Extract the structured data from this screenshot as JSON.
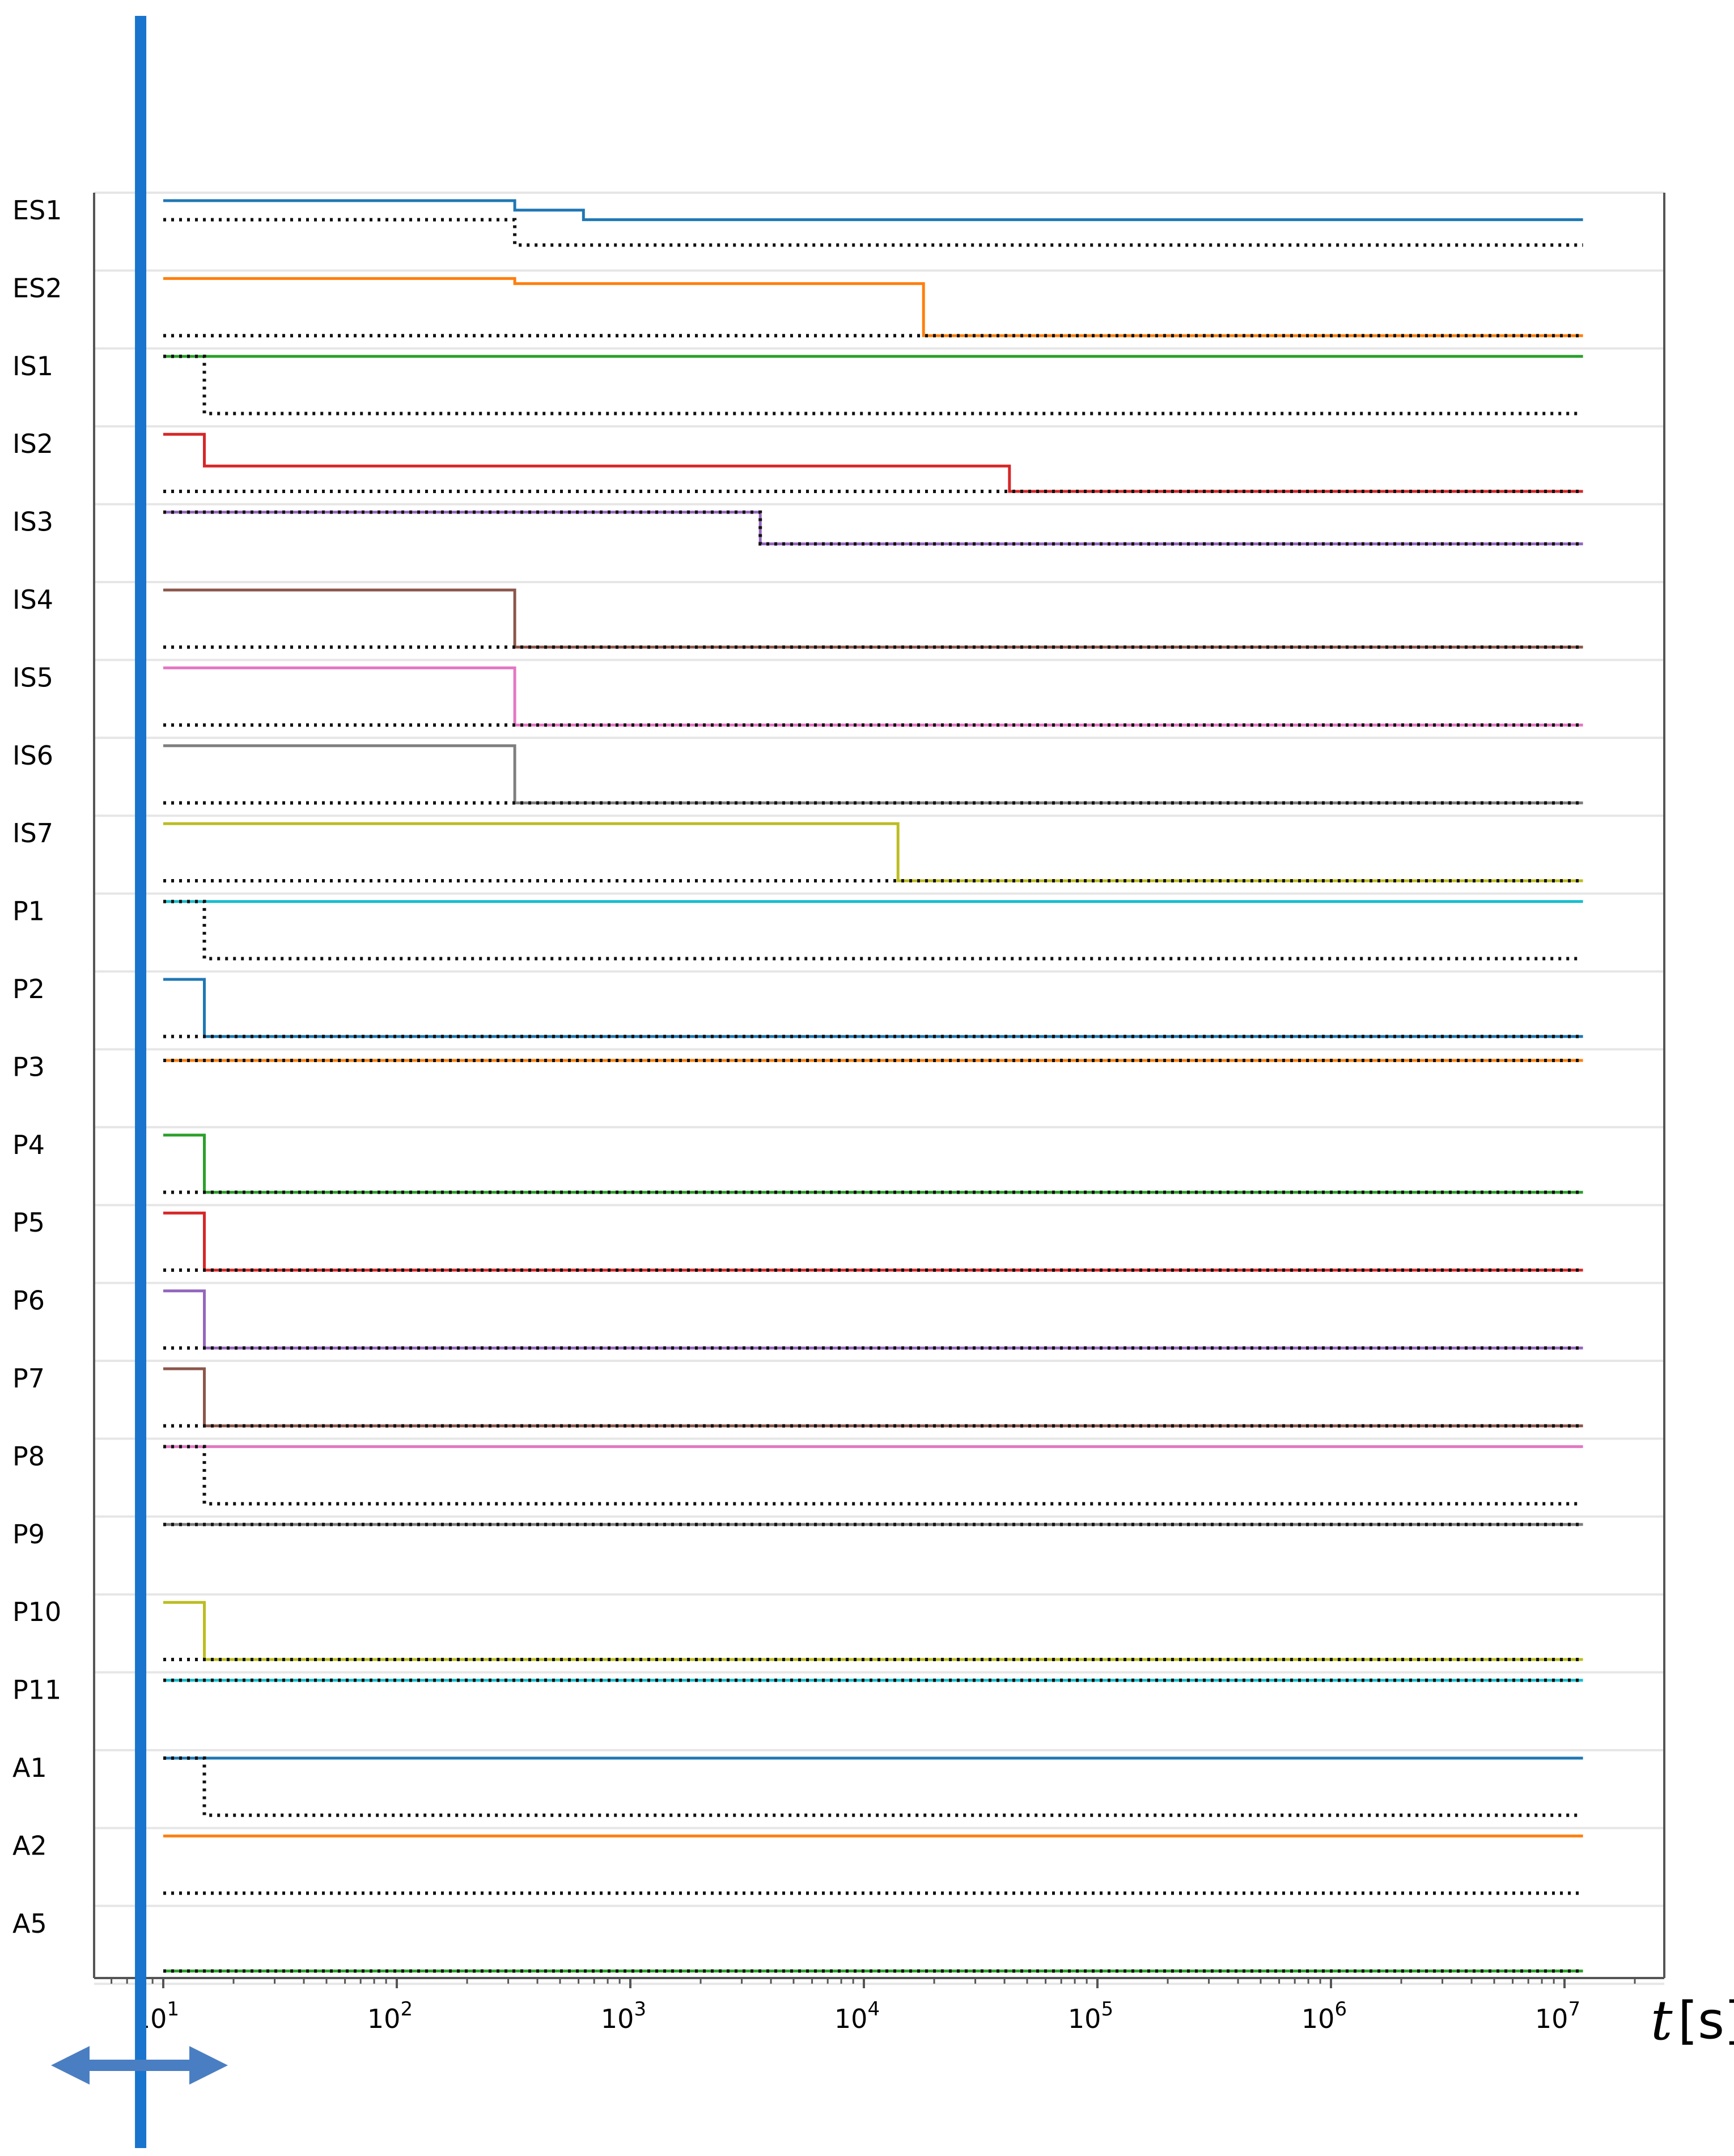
{
  "chart_data": {
    "type": "line",
    "subtype": "step",
    "x_scale": "log",
    "xlim": [
      10,
      12000000
    ],
    "x_ticks": [
      {
        "value": 10,
        "base": "10",
        "exp": "1"
      },
      {
        "value": 100,
        "base": "10",
        "exp": "2"
      },
      {
        "value": 1000,
        "base": "10",
        "exp": "3"
      },
      {
        "value": 10000,
        "base": "10",
        "exp": "4"
      },
      {
        "value": 100000,
        "base": "10",
        "exp": "5"
      },
      {
        "value": 1000000,
        "base": "10",
        "exp": "6"
      },
      {
        "value": 10000000,
        "base": "10",
        "exp": "7"
      }
    ],
    "x_unit": {
      "symbol": "t",
      "unit": "[s]"
    },
    "cursor": {
      "x": 8
    },
    "grid": "horizontal row separators",
    "legend": "none",
    "rows": [
      {
        "label": "ES1",
        "color": "#1f77b4",
        "solid": [
          [
            10,
            1.0
          ],
          [
            320,
            0.85
          ],
          [
            630,
            0.7
          ],
          [
            12000000,
            0.7
          ]
        ],
        "dotted": [
          [
            10,
            0.7
          ],
          [
            320,
            0.3
          ],
          [
            12000000,
            0.3
          ]
        ]
      },
      {
        "label": "ES2",
        "color": "#ff7f0e",
        "solid": [
          [
            10,
            1.0
          ],
          [
            320,
            0.92
          ],
          [
            18000,
            0.1
          ],
          [
            12000000,
            0.1
          ]
        ],
        "dotted": [
          [
            10,
            0.1
          ],
          [
            12000000,
            0.1
          ]
        ]
      },
      {
        "label": "IS1",
        "color": "#2ca02c",
        "solid": [
          [
            10,
            1.0
          ],
          [
            12000000,
            1.0
          ]
        ],
        "dotted": [
          [
            10,
            1.0
          ],
          [
            15,
            0.1
          ],
          [
            11500000,
            0.1
          ]
        ]
      },
      {
        "label": "IS2",
        "color": "#d62728",
        "solid": [
          [
            10,
            1.0
          ],
          [
            15,
            0.5
          ],
          [
            42000,
            0.1
          ],
          [
            12000000,
            0.1
          ]
        ],
        "dotted": [
          [
            10,
            0.1
          ],
          [
            12000000,
            0.1
          ]
        ]
      },
      {
        "label": "IS3",
        "color": "#9467bd",
        "solid": [
          [
            10,
            1.0
          ],
          [
            3600,
            0.5
          ],
          [
            12000000,
            0.5
          ]
        ],
        "dotted": [
          [
            10,
            1.0
          ],
          [
            3600,
            0.5
          ],
          [
            12000000,
            0.5
          ]
        ]
      },
      {
        "label": "IS4",
        "color": "#8c564b",
        "solid": [
          [
            10,
            1.0
          ],
          [
            320,
            0.1
          ],
          [
            12000000,
            0.1
          ]
        ],
        "dotted": [
          [
            10,
            0.1
          ],
          [
            12000000,
            0.1
          ]
        ]
      },
      {
        "label": "IS5",
        "color": "#e377c2",
        "solid": [
          [
            10,
            1.0
          ],
          [
            320,
            0.1
          ],
          [
            12000000,
            0.1
          ]
        ],
        "dotted": [
          [
            10,
            0.1
          ],
          [
            12000000,
            0.1
          ]
        ]
      },
      {
        "label": "IS6",
        "color": "#7f7f7f",
        "solid": [
          [
            10,
            1.0
          ],
          [
            320,
            0.1
          ],
          [
            12000000,
            0.1
          ]
        ],
        "dotted": [
          [
            10,
            0.1
          ],
          [
            12000000,
            0.1
          ]
        ]
      },
      {
        "label": "IS7",
        "color": "#bcbd22",
        "solid": [
          [
            10,
            1.0
          ],
          [
            14000,
            0.1
          ],
          [
            12000000,
            0.1
          ]
        ],
        "dotted": [
          [
            10,
            0.1
          ],
          [
            12000000,
            0.1
          ]
        ]
      },
      {
        "label": "P1",
        "color": "#17becf",
        "solid": [
          [
            10,
            1.0
          ],
          [
            12000000,
            1.0
          ]
        ],
        "dotted": [
          [
            10,
            1.0
          ],
          [
            15,
            0.1
          ],
          [
            11500000,
            0.1
          ]
        ]
      },
      {
        "label": "P2",
        "color": "#1f77b4",
        "solid": [
          [
            10,
            1.0
          ],
          [
            15,
            0.1
          ],
          [
            12000000,
            0.1
          ]
        ],
        "dotted": [
          [
            10,
            0.1
          ],
          [
            12000000,
            0.1
          ]
        ]
      },
      {
        "label": "P3",
        "color": "#ff7f0e",
        "solid": [
          [
            10,
            0.95
          ],
          [
            12000000,
            0.95
          ]
        ],
        "dotted": [
          [
            10,
            0.95
          ],
          [
            12000000,
            0.95
          ]
        ]
      },
      {
        "label": "P4",
        "color": "#2ca02c",
        "solid": [
          [
            10,
            1.0
          ],
          [
            15,
            0.1
          ],
          [
            12000000,
            0.1
          ]
        ],
        "dotted": [
          [
            10,
            0.1
          ],
          [
            12000000,
            0.1
          ]
        ]
      },
      {
        "label": "P5",
        "color": "#d62728",
        "solid": [
          [
            10,
            1.0
          ],
          [
            15,
            0.1
          ],
          [
            12000000,
            0.1
          ]
        ],
        "dotted": [
          [
            10,
            0.1
          ],
          [
            12000000,
            0.1
          ]
        ]
      },
      {
        "label": "P6",
        "color": "#9467bd",
        "solid": [
          [
            10,
            1.0
          ],
          [
            15,
            0.1
          ],
          [
            12000000,
            0.1
          ]
        ],
        "dotted": [
          [
            10,
            0.1
          ],
          [
            12000000,
            0.1
          ]
        ]
      },
      {
        "label": "P7",
        "color": "#8c564b",
        "solid": [
          [
            10,
            1.0
          ],
          [
            15,
            0.1
          ],
          [
            12000000,
            0.1
          ]
        ],
        "dotted": [
          [
            10,
            0.1
          ],
          [
            12000000,
            0.1
          ]
        ]
      },
      {
        "label": "P8",
        "color": "#e377c2",
        "solid": [
          [
            10,
            1.0
          ],
          [
            12000000,
            1.0
          ]
        ],
        "dotted": [
          [
            10,
            1.0
          ],
          [
            15,
            0.1
          ],
          [
            11500000,
            0.1
          ]
        ]
      },
      {
        "label": "P9",
        "color": "#7f7f7f",
        "solid": [
          [
            10,
            1.0
          ],
          [
            12000000,
            1.0
          ]
        ],
        "dotted": [
          [
            10,
            1.0
          ],
          [
            12000000,
            1.0
          ]
        ]
      },
      {
        "label": "P10",
        "color": "#bcbd22",
        "solid": [
          [
            10,
            1.0
          ],
          [
            15,
            0.1
          ],
          [
            12000000,
            0.1
          ]
        ],
        "dotted": [
          [
            10,
            0.1
          ],
          [
            12000000,
            0.1
          ]
        ]
      },
      {
        "label": "P11",
        "color": "#17becf",
        "solid": [
          [
            10,
            1.0
          ],
          [
            12000000,
            1.0
          ]
        ],
        "dotted": [
          [
            10,
            1.0
          ],
          [
            12000000,
            1.0
          ]
        ]
      },
      {
        "label": "A1",
        "color": "#1f77b4",
        "solid": [
          [
            10,
            1.0
          ],
          [
            12000000,
            1.0
          ]
        ],
        "dotted": [
          [
            10,
            1.0
          ],
          [
            15,
            0.1
          ],
          [
            11500000,
            0.1
          ]
        ]
      },
      {
        "label": "A2",
        "color": "#ff7f0e",
        "solid": [
          [
            10,
            1.0
          ],
          [
            12000000,
            1.0
          ]
        ],
        "dotted": [
          [
            10,
            0.1
          ],
          [
            12000000,
            0.1
          ]
        ]
      },
      {
        "label": "A5",
        "color": "#2ca02c",
        "solid": [
          [
            10,
            0.1
          ],
          [
            12000000,
            0.1
          ]
        ],
        "dotted": [
          [
            10,
            0.1
          ],
          [
            12000000,
            0.1
          ]
        ]
      }
    ]
  }
}
